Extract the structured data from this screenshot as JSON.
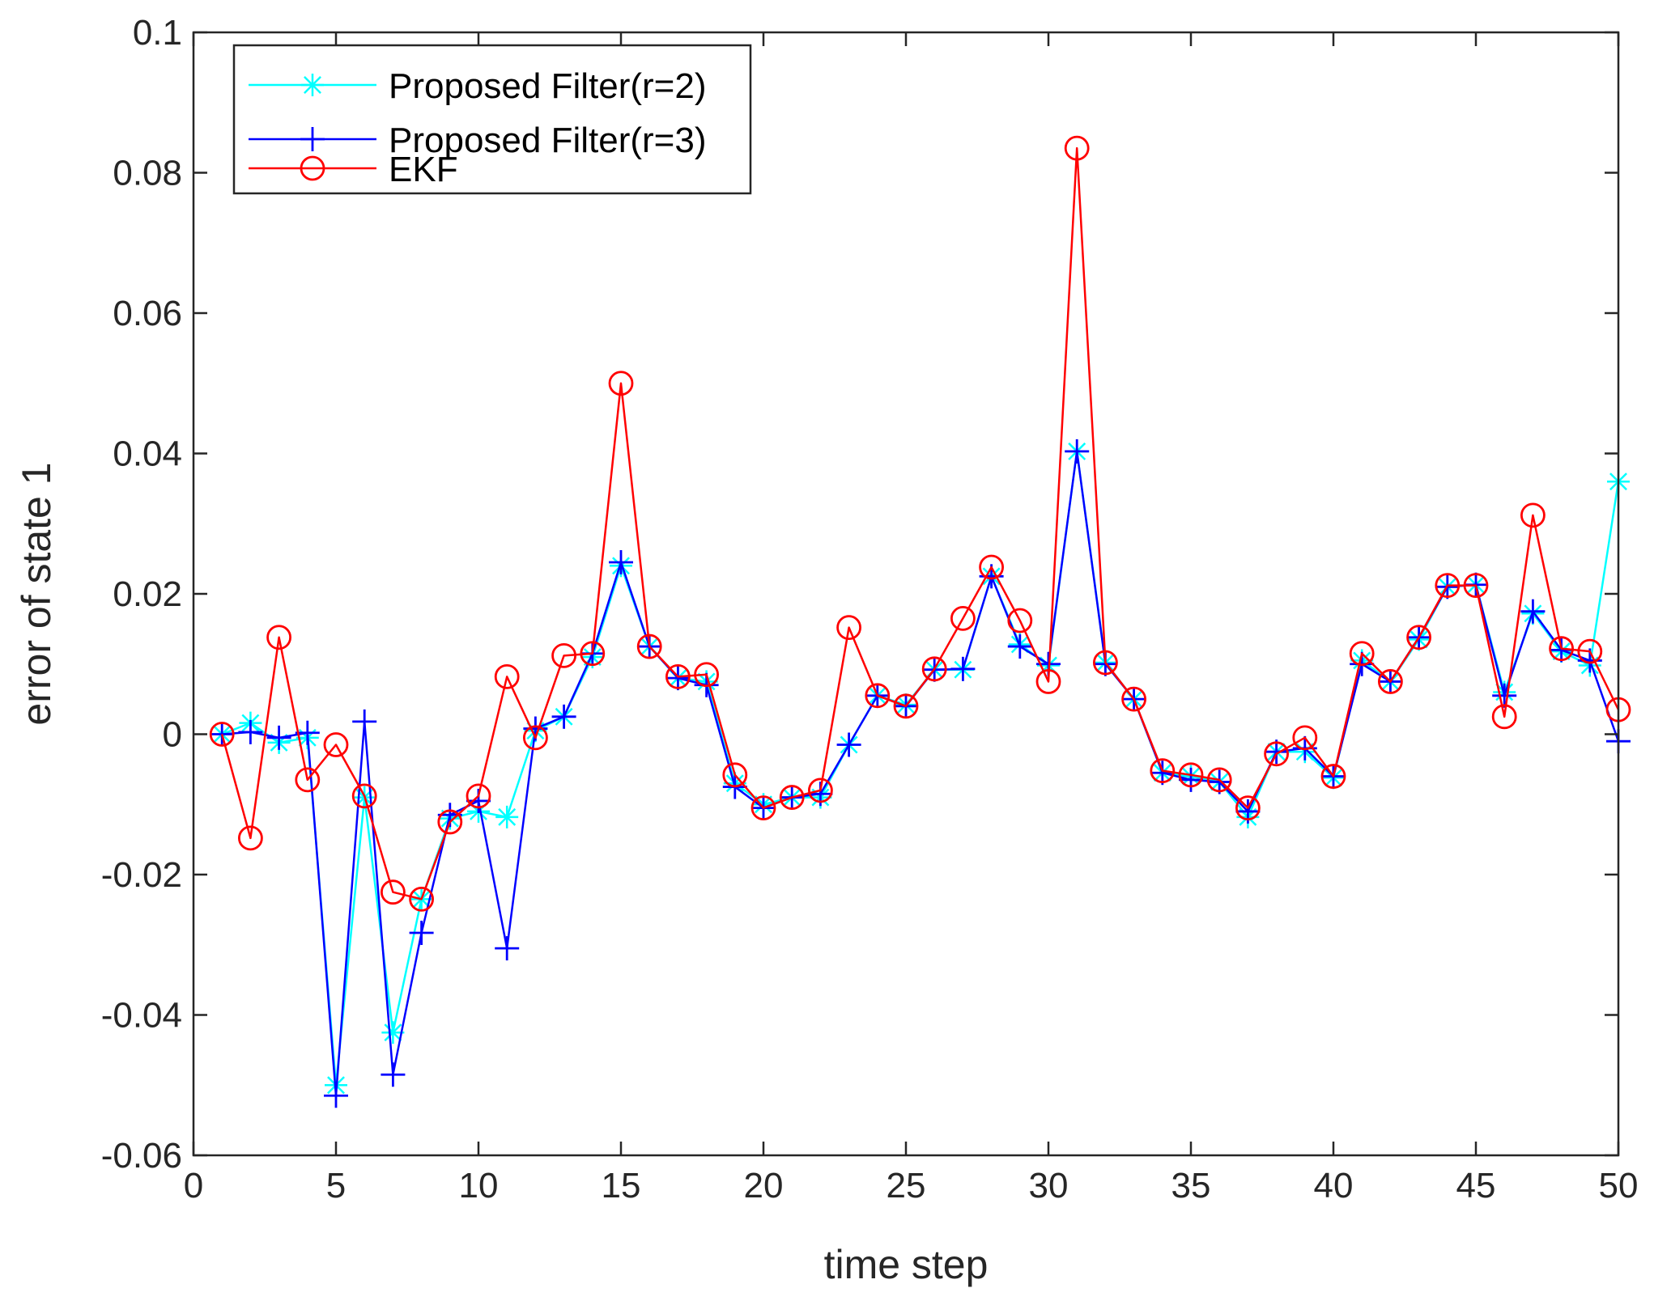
{
  "chart_data": {
    "type": "line",
    "title": "",
    "xlabel": "time step",
    "ylabel": "error of state 1",
    "xlim": [
      0,
      50
    ],
    "ylim": [
      -0.06,
      0.1
    ],
    "xticks": [
      0,
      5,
      10,
      15,
      20,
      25,
      30,
      35,
      40,
      45,
      50
    ],
    "xtick_labels": [
      "0",
      "5",
      "10",
      "15",
      "20",
      "25",
      "30",
      "35",
      "40",
      "45",
      "50"
    ],
    "yticks": [
      -0.06,
      -0.04,
      -0.02,
      0,
      0.02,
      0.04,
      0.06,
      0.08,
      0.1
    ],
    "ytick_labels": [
      "-0.06",
      "-0.04",
      "-0.02",
      "0",
      "0.02",
      "0.04",
      "0.06",
      "0.08",
      "0.1"
    ],
    "grid": false,
    "legend_position": "top-left",
    "x": [
      1,
      2,
      3,
      4,
      5,
      6,
      7,
      8,
      9,
      10,
      11,
      12,
      13,
      14,
      15,
      16,
      17,
      18,
      19,
      20,
      21,
      22,
      23,
      24,
      25,
      26,
      27,
      28,
      29,
      30,
      31,
      32,
      33,
      34,
      35,
      36,
      37,
      38,
      39,
      40,
      41,
      42,
      43,
      44,
      45,
      46,
      47,
      48,
      49,
      50
    ],
    "series": [
      {
        "name": "Proposed Filter(r=2)",
        "color": "#00ffff",
        "marker": "asterisk",
        "values": [
          0,
          0.0016,
          -0.0012,
          -0.0005,
          -0.05,
          -0.009,
          -0.0425,
          -0.0235,
          -0.012,
          -0.011,
          -0.0118,
          0.0005,
          0.0025,
          0.011,
          0.024,
          0.0125,
          0.008,
          0.0075,
          -0.007,
          -0.01,
          -0.009,
          -0.009,
          -0.0015,
          0.0055,
          0.0042,
          0.0092,
          0.0092,
          0.0225,
          0.0128,
          0.0098,
          0.0403,
          0.0102,
          0.005,
          -0.0055,
          -0.006,
          -0.0068,
          -0.0118,
          -0.0025,
          -0.0025,
          -0.0062,
          0.0105,
          0.0075,
          0.0135,
          0.021,
          0.0213,
          0.006,
          0.0172,
          0.0118,
          0.0098,
          0.036
        ]
      },
      {
        "name": "Proposed Filter(r=3)",
        "color": "#0000ff",
        "marker": "plus",
        "values": [
          0,
          0.0003,
          -0.0005,
          0.0002,
          -0.0515,
          0.0018,
          -0.0485,
          -0.0283,
          -0.0115,
          -0.0095,
          -0.0305,
          0.0008,
          0.0025,
          0.0115,
          0.0245,
          0.0125,
          0.008,
          0.007,
          -0.0075,
          -0.0105,
          -0.009,
          -0.0085,
          -0.0015,
          0.0055,
          0.004,
          0.0092,
          0.0093,
          0.0225,
          0.0125,
          0.01,
          0.0403,
          0.01,
          0.005,
          -0.0055,
          -0.0065,
          -0.0068,
          -0.011,
          -0.0025,
          -0.002,
          -0.006,
          0.01,
          0.0075,
          0.0138,
          0.021,
          0.0213,
          0.0055,
          0.0175,
          0.012,
          0.0105,
          -0.001
        ]
      },
      {
        "name": "EKF",
        "color": "#ff0000",
        "marker": "circle",
        "values": [
          0,
          -0.0148,
          0.0138,
          -0.0065,
          -0.0015,
          -0.0088,
          -0.0225,
          -0.0235,
          -0.0125,
          -0.0088,
          0.0082,
          -0.0005,
          0.0112,
          0.0115,
          0.05,
          0.0125,
          0.0082,
          0.0085,
          -0.0058,
          -0.0105,
          -0.009,
          -0.008,
          0.0152,
          0.0055,
          0.004,
          0.0093,
          0.0165,
          0.0238,
          0.0162,
          0.0075,
          0.0835,
          0.0102,
          0.005,
          -0.0052,
          -0.0058,
          -0.0065,
          -0.0105,
          -0.0028,
          -0.0005,
          -0.006,
          0.0115,
          0.0075,
          0.0138,
          0.0212,
          0.0212,
          0.0025,
          0.0312,
          0.0122,
          0.0118,
          0.0035
        ]
      }
    ]
  }
}
